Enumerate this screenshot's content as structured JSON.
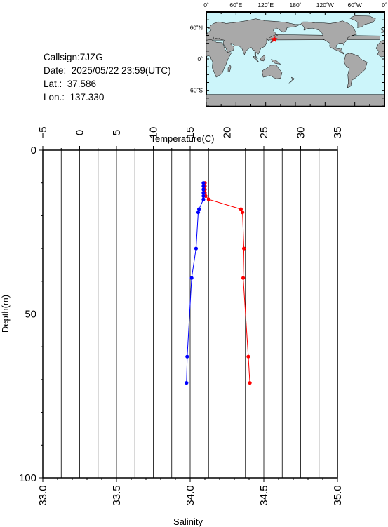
{
  "info": {
    "callsign": "Callsign:7JZG",
    "date": "Date:  2025/05/22 23:59(UTC)",
    "lat": "Lat.:  37.586",
    "lon": "Lon.:  137.330"
  },
  "map": {
    "lon_labels": [
      "0˚",
      "60˚E",
      "120˚E",
      "180˚",
      "120˚W",
      "60˚W",
      "0˚"
    ],
    "lat_labels": [
      "60˚N",
      "0˚",
      "60˚S"
    ],
    "ocean_color": "#ccf5fa",
    "land_color": "#a9a9a9",
    "marker_color": "#ff0000",
    "marker": {
      "lon": 137.33,
      "lat": 37.586
    }
  },
  "chart_data": {
    "type": "line",
    "y_axis": {
      "label": "Depth(m)",
      "range": [
        0,
        100
      ],
      "ticks": [
        "0",
        "50",
        "100"
      ],
      "inverted": true
    },
    "top_axis": {
      "label": "Temperature(C)",
      "range": [
        -5,
        35
      ],
      "ticks": [
        "−5",
        "0",
        "5",
        "10",
        "15",
        "20",
        "25",
        "30",
        "35"
      ]
    },
    "bottom_axis": {
      "label": "Salinity",
      "range": [
        33.0,
        35.0
      ],
      "ticks": [
        "33.0",
        "33.5",
        "34.0",
        "34.5",
        "35.0"
      ]
    },
    "grid": true,
    "series": [
      {
        "axis": "top",
        "color": "#ff0000",
        "points": [
          {
            "x": 17.0,
            "y": 10
          },
          {
            "x": 17.0,
            "y": 11
          },
          {
            "x": 17.0,
            "y": 12
          },
          {
            "x": 17.0,
            "y": 13
          },
          {
            "x": 17.1,
            "y": 14
          },
          {
            "x": 17.5,
            "y": 15
          },
          {
            "x": 21.9,
            "y": 18
          },
          {
            "x": 22.1,
            "y": 19
          },
          {
            "x": 22.3,
            "y": 30
          },
          {
            "x": 22.2,
            "y": 39
          },
          {
            "x": 22.9,
            "y": 63
          },
          {
            "x": 23.1,
            "y": 71
          }
        ]
      },
      {
        "axis": "bottom",
        "color": "#0000ff",
        "points": [
          {
            "x": 34.09,
            "y": 10
          },
          {
            "x": 34.09,
            "y": 11
          },
          {
            "x": 34.09,
            "y": 12
          },
          {
            "x": 34.09,
            "y": 13
          },
          {
            "x": 34.09,
            "y": 14
          },
          {
            "x": 34.09,
            "y": 15
          },
          {
            "x": 34.06,
            "y": 18
          },
          {
            "x": 34.055,
            "y": 19
          },
          {
            "x": 34.04,
            "y": 30
          },
          {
            "x": 34.01,
            "y": 39
          },
          {
            "x": 33.98,
            "y": 63
          },
          {
            "x": 33.975,
            "y": 71
          }
        ]
      }
    ]
  }
}
